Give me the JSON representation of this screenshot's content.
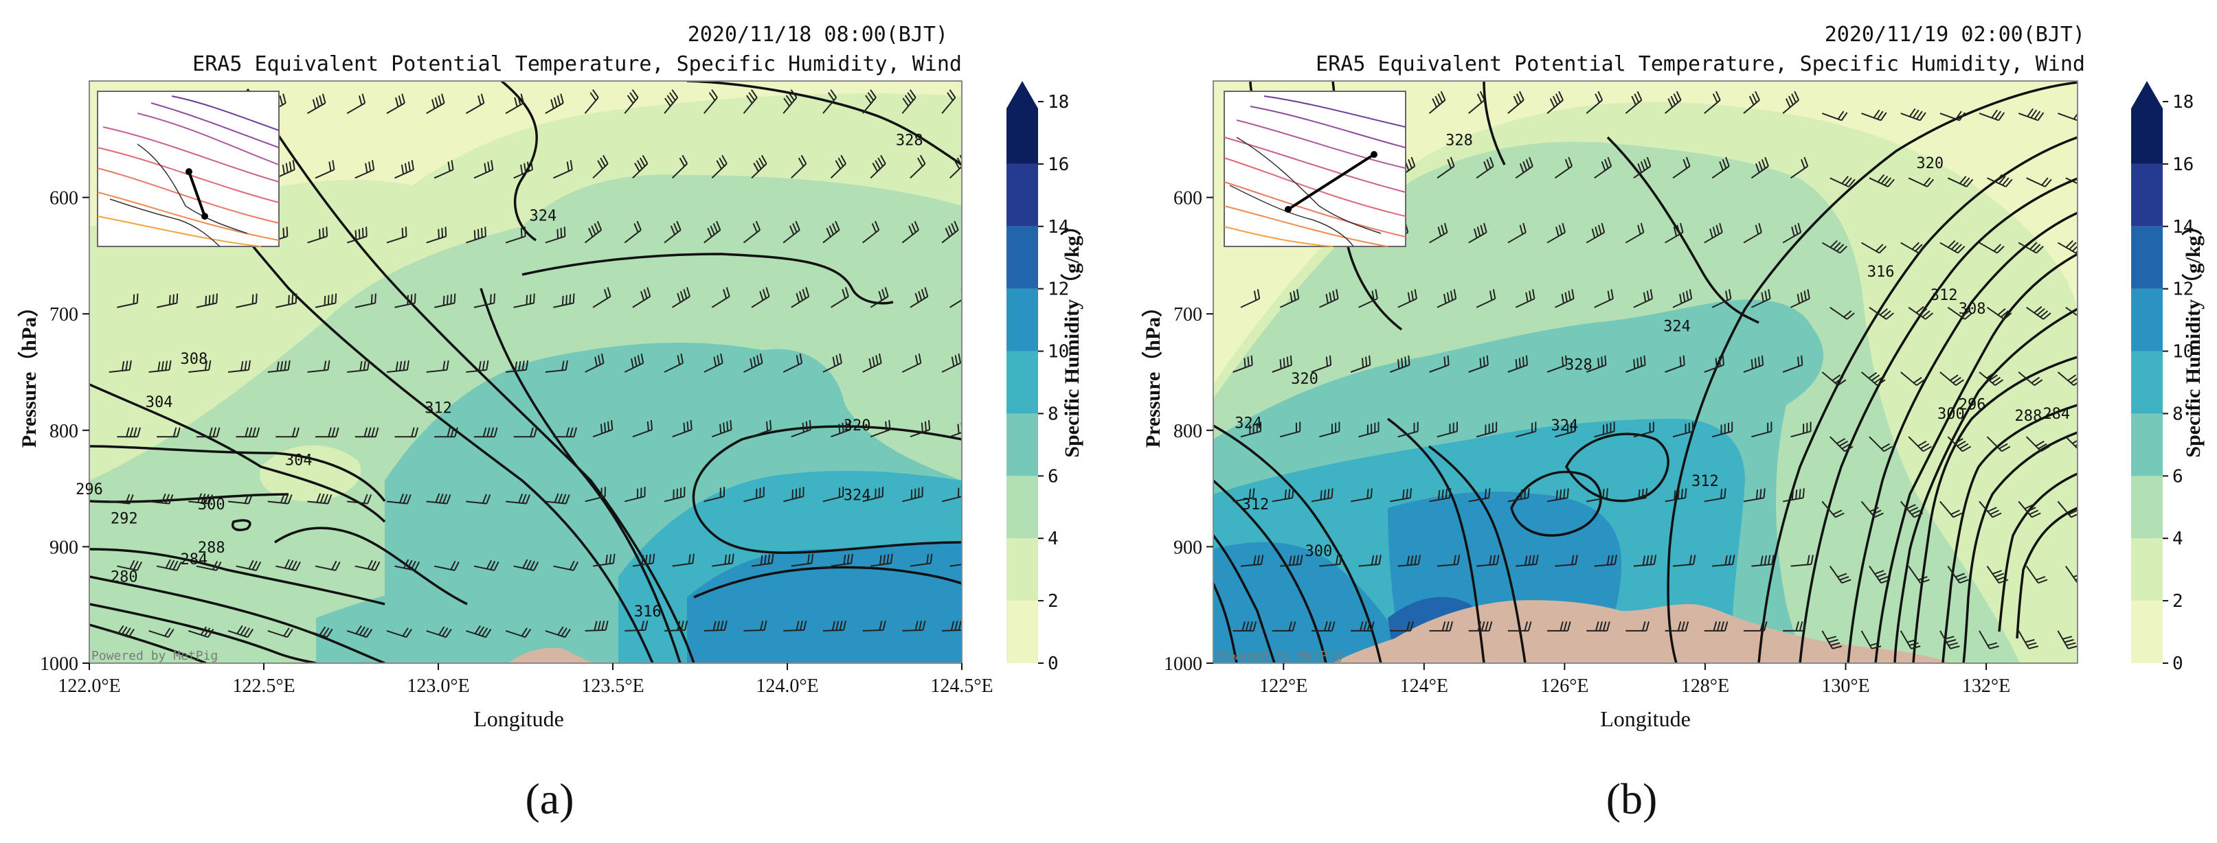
{
  "colors": {
    "humidity_0_2": "#edf6c2",
    "humidity_2_4": "#d7efb7",
    "humidity_4_6": "#b2e0b4",
    "humidity_6_8": "#76c9b8",
    "humidity_8_10": "#3fb2c4",
    "humidity_10_12": "#2a93c1",
    "humidity_12_14": "#2166ac",
    "humidity_14_16": "#253b8f",
    "humidity_16_18": "#0b1f5e",
    "terrain": "#d6b5a2",
    "contour": "#111111",
    "barb": "#222222"
  },
  "colorbar": {
    "label": "Specific Humidity （g/kg）",
    "ticks": [
      "0",
      "2",
      "4",
      "6",
      "8",
      "10",
      "12",
      "14",
      "16",
      "18"
    ]
  },
  "chart_data": [
    {
      "type": "contour",
      "panel_label": "(a)",
      "time_label": "2020/11/18 08:00(BJT)",
      "title": "ERA5 Equivalent Potential Temperature, Specific Humidity, Wind",
      "xlabel": "Longitude",
      "ylabel": "Pressure（hPa）",
      "xlim": [
        122.0,
        124.5
      ],
      "ylim": [
        1000,
        500
      ],
      "x_ticks": [
        "122.0°E",
        "122.5°E",
        "123.0°E",
        "123.5°E",
        "124.0°E",
        "124.5°E"
      ],
      "y_ticks": [
        "600",
        "700",
        "800",
        "900",
        "1000"
      ],
      "watermark": "Powered by MetPig",
      "contour_labels": [
        {
          "text": "328",
          "x": 124.35,
          "y": 555
        },
        {
          "text": "324",
          "x": 123.3,
          "y": 620
        },
        {
          "text": "308",
          "x": 122.3,
          "y": 743
        },
        {
          "text": "304",
          "x": 122.2,
          "y": 780
        },
        {
          "text": "312",
          "x": 123.0,
          "y": 785
        },
        {
          "text": "304",
          "x": 122.6,
          "y": 830
        },
        {
          "text": "296",
          "x": 122.0,
          "y": 855
        },
        {
          "text": "300",
          "x": 122.35,
          "y": 868
        },
        {
          "text": "292",
          "x": 122.1,
          "y": 880
        },
        {
          "text": "288",
          "x": 122.35,
          "y": 905
        },
        {
          "text": "284",
          "x": 122.3,
          "y": 915
        },
        {
          "text": "280",
          "x": 122.1,
          "y": 930
        },
        {
          "text": "320",
          "x": 124.2,
          "y": 800
        },
        {
          "text": "324",
          "x": 124.2,
          "y": 860
        },
        {
          "text": "316",
          "x": 123.6,
          "y": 960
        }
      ]
    },
    {
      "type": "contour",
      "panel_label": "(b)",
      "time_label": "2020/11/19 02:00(BJT)",
      "title": "ERA5 Equivalent Potential Temperature, Specific Humidity, Wind",
      "xlabel": "Longitude",
      "ylabel": "Pressure（hPa）",
      "xlim": [
        121.0,
        133.3
      ],
      "ylim": [
        1000,
        500
      ],
      "x_ticks": [
        "122°E",
        "124°E",
        "126°E",
        "128°E",
        "130°E",
        "132°E"
      ],
      "y_ticks": [
        "600",
        "700",
        "800",
        "900",
        "1000"
      ],
      "watermark": "Powered by MetPig",
      "contour_labels": [
        {
          "text": "328",
          "x": 124.5,
          "y": 555
        },
        {
          "text": "320",
          "x": 131.2,
          "y": 575
        },
        {
          "text": "316",
          "x": 130.5,
          "y": 668
        },
        {
          "text": "312",
          "x": 131.4,
          "y": 688
        },
        {
          "text": "308",
          "x": 131.8,
          "y": 700
        },
        {
          "text": "324",
          "x": 127.6,
          "y": 715
        },
        {
          "text": "328",
          "x": 126.2,
          "y": 748
        },
        {
          "text": "320",
          "x": 122.3,
          "y": 760
        },
        {
          "text": "324",
          "x": 126.0,
          "y": 800
        },
        {
          "text": "312",
          "x": 128.0,
          "y": 848
        },
        {
          "text": "300",
          "x": 131.5,
          "y": 790
        },
        {
          "text": "296",
          "x": 131.8,
          "y": 782
        },
        {
          "text": "288",
          "x": 132.6,
          "y": 792
        },
        {
          "text": "284",
          "x": 133.0,
          "y": 790
        },
        {
          "text": "324",
          "x": 121.5,
          "y": 798
        },
        {
          "text": "312",
          "x": 121.6,
          "y": 868
        },
        {
          "text": "300",
          "x": 122.5,
          "y": 908
        }
      ]
    }
  ]
}
